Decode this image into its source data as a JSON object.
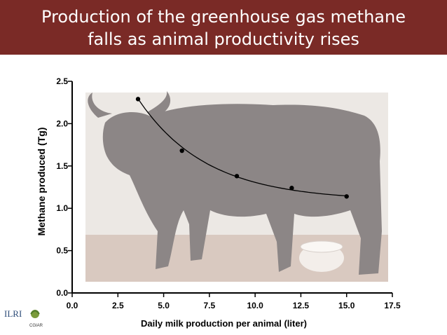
{
  "slide": {
    "title_line1": "Production of the greenhouse gas methane",
    "title_line2": "falls as animal productivity rises"
  },
  "logos": {
    "ilri": "ILRI",
    "cgiar": "CGIAR"
  },
  "colors": {
    "header_bg": "#7a2a26",
    "header_text": "#ffffff",
    "series": "#000000"
  },
  "chart_data": {
    "type": "scatter",
    "xlabel": "Daily milk production per animal (liter)",
    "ylabel": "Methane produced (Tg)",
    "xlim": [
      0,
      17.5
    ],
    "ylim": [
      0,
      2.5
    ],
    "x_ticks": [
      "0.0",
      "2.5",
      "5.0",
      "7.5",
      "10.0",
      "12.5",
      "15.0",
      "17.5"
    ],
    "y_ticks": [
      "0.0",
      "0.5",
      "1.0",
      "1.5",
      "2.0",
      "2.5"
    ],
    "x": [
      3.6,
      6.0,
      9.0,
      12.0,
      15.0
    ],
    "y": [
      2.29,
      1.68,
      1.38,
      1.24,
      1.14
    ],
    "trendline": "exponential decay fit",
    "background_image": "buffalo illustration (faded)"
  }
}
